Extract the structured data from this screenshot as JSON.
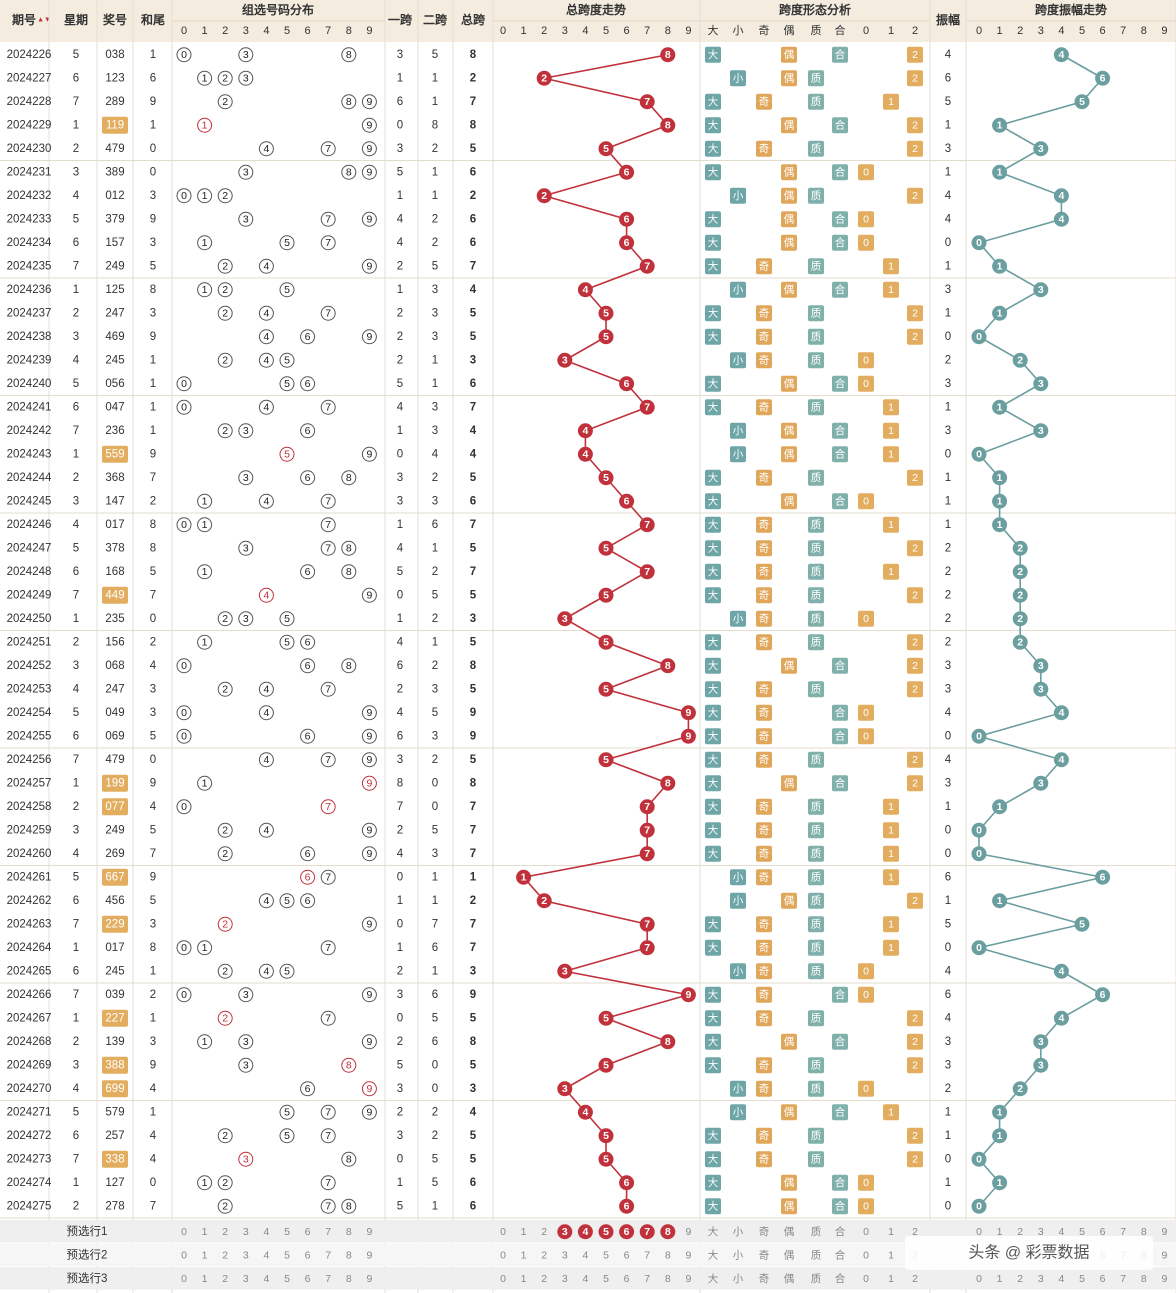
{
  "headers": {
    "issue": "期号",
    "sort_glyph": "▲▼",
    "weekday": "星期",
    "number": "奖号",
    "sum_tail": "和尾",
    "group_dist": "组选号码分布",
    "span1": "一跨",
    "span2": "二跨",
    "total_span": "总跨",
    "span_trend": "总跨度走势",
    "span_shape": "跨度形态分析",
    "amplitude": "振幅",
    "amp_trend": "跨度振幅走势",
    "digits": [
      "0",
      "1",
      "2",
      "3",
      "4",
      "5",
      "6",
      "7",
      "8",
      "9"
    ],
    "shape_labels": [
      "大",
      "小",
      "奇",
      "偶",
      "质",
      "合",
      "0",
      "1",
      "2"
    ]
  },
  "rows": [
    {
      "issue": "2024226",
      "weekday": "5",
      "number": "038",
      "tail": "1",
      "span1": "3",
      "span2": "5",
      "span": "8",
      "amp": "4",
      "hl": false
    },
    {
      "issue": "2024227",
      "weekday": "6",
      "number": "123",
      "tail": "6",
      "span1": "1",
      "span2": "1",
      "span": "2",
      "amp": "6",
      "hl": false
    },
    {
      "issue": "2024228",
      "weekday": "7",
      "number": "289",
      "tail": "9",
      "span1": "6",
      "span2": "1",
      "span": "7",
      "amp": "5",
      "hl": false
    },
    {
      "issue": "2024229",
      "weekday": "1",
      "number": "119",
      "tail": "1",
      "span1": "0",
      "span2": "8",
      "span": "8",
      "amp": "1",
      "hl": true
    },
    {
      "issue": "2024230",
      "weekday": "2",
      "number": "479",
      "tail": "0",
      "span1": "3",
      "span2": "2",
      "span": "5",
      "amp": "3",
      "hl": false
    },
    {
      "issue": "2024231",
      "weekday": "3",
      "number": "389",
      "tail": "0",
      "span1": "5",
      "span2": "1",
      "span": "6",
      "amp": "1",
      "hl": false
    },
    {
      "issue": "2024232",
      "weekday": "4",
      "number": "012",
      "tail": "3",
      "span1": "1",
      "span2": "1",
      "span": "2",
      "amp": "4",
      "hl": false
    },
    {
      "issue": "2024233",
      "weekday": "5",
      "number": "379",
      "tail": "9",
      "span1": "4",
      "span2": "2",
      "span": "6",
      "amp": "4",
      "hl": false
    },
    {
      "issue": "2024234",
      "weekday": "6",
      "number": "157",
      "tail": "3",
      "span1": "4",
      "span2": "2",
      "span": "6",
      "amp": "0",
      "hl": false
    },
    {
      "issue": "2024235",
      "weekday": "7",
      "number": "249",
      "tail": "5",
      "span1": "2",
      "span2": "5",
      "span": "7",
      "amp": "1",
      "hl": false
    },
    {
      "issue": "2024236",
      "weekday": "1",
      "number": "125",
      "tail": "8",
      "span1": "1",
      "span2": "3",
      "span": "4",
      "amp": "3",
      "hl": false
    },
    {
      "issue": "2024237",
      "weekday": "2",
      "number": "247",
      "tail": "3",
      "span1": "2",
      "span2": "3",
      "span": "5",
      "amp": "1",
      "hl": false
    },
    {
      "issue": "2024238",
      "weekday": "3",
      "number": "469",
      "tail": "9",
      "span1": "2",
      "span2": "3",
      "span": "5",
      "amp": "0",
      "hl": false
    },
    {
      "issue": "2024239",
      "weekday": "4",
      "number": "245",
      "tail": "1",
      "span1": "2",
      "span2": "1",
      "span": "3",
      "amp": "2",
      "hl": false
    },
    {
      "issue": "2024240",
      "weekday": "5",
      "number": "056",
      "tail": "1",
      "span1": "5",
      "span2": "1",
      "span": "6",
      "amp": "3",
      "hl": false
    },
    {
      "issue": "2024241",
      "weekday": "6",
      "number": "047",
      "tail": "1",
      "span1": "4",
      "span2": "3",
      "span": "7",
      "amp": "1",
      "hl": false
    },
    {
      "issue": "2024242",
      "weekday": "7",
      "number": "236",
      "tail": "1",
      "span1": "1",
      "span2": "3",
      "span": "4",
      "amp": "3",
      "hl": false
    },
    {
      "issue": "2024243",
      "weekday": "1",
      "number": "559",
      "tail": "9",
      "span1": "0",
      "span2": "4",
      "span": "4",
      "amp": "0",
      "hl": true
    },
    {
      "issue": "2024244",
      "weekday": "2",
      "number": "368",
      "tail": "7",
      "span1": "3",
      "span2": "2",
      "span": "5",
      "amp": "1",
      "hl": false
    },
    {
      "issue": "2024245",
      "weekday": "3",
      "number": "147",
      "tail": "2",
      "span1": "3",
      "span2": "3",
      "span": "6",
      "amp": "1",
      "hl": false
    },
    {
      "issue": "2024246",
      "weekday": "4",
      "number": "017",
      "tail": "8",
      "span1": "1",
      "span2": "6",
      "span": "7",
      "amp": "1",
      "hl": false
    },
    {
      "issue": "2024247",
      "weekday": "5",
      "number": "378",
      "tail": "8",
      "span1": "4",
      "span2": "1",
      "span": "5",
      "amp": "2",
      "hl": false
    },
    {
      "issue": "2024248",
      "weekday": "6",
      "number": "168",
      "tail": "5",
      "span1": "5",
      "span2": "2",
      "span": "7",
      "amp": "2",
      "hl": false
    },
    {
      "issue": "2024249",
      "weekday": "7",
      "number": "449",
      "tail": "7",
      "span1": "0",
      "span2": "5",
      "span": "5",
      "amp": "2",
      "hl": true
    },
    {
      "issue": "2024250",
      "weekday": "1",
      "number": "235",
      "tail": "0",
      "span1": "1",
      "span2": "2",
      "span": "3",
      "amp": "2",
      "hl": false
    },
    {
      "issue": "2024251",
      "weekday": "2",
      "number": "156",
      "tail": "2",
      "span1": "4",
      "span2": "1",
      "span": "5",
      "amp": "2",
      "hl": false
    },
    {
      "issue": "2024252",
      "weekday": "3",
      "number": "068",
      "tail": "4",
      "span1": "6",
      "span2": "2",
      "span": "8",
      "amp": "3",
      "hl": false
    },
    {
      "issue": "2024253",
      "weekday": "4",
      "number": "247",
      "tail": "3",
      "span1": "2",
      "span2": "3",
      "span": "5",
      "amp": "3",
      "hl": false
    },
    {
      "issue": "2024254",
      "weekday": "5",
      "number": "049",
      "tail": "3",
      "span1": "4",
      "span2": "5",
      "span": "9",
      "amp": "4",
      "hl": false
    },
    {
      "issue": "2024255",
      "weekday": "6",
      "number": "069",
      "tail": "5",
      "span1": "6",
      "span2": "3",
      "span": "9",
      "amp": "0",
      "hl": false
    },
    {
      "issue": "2024256",
      "weekday": "7",
      "number": "479",
      "tail": "0",
      "span1": "3",
      "span2": "2",
      "span": "5",
      "amp": "4",
      "hl": false
    },
    {
      "issue": "2024257",
      "weekday": "1",
      "number": "199",
      "tail": "9",
      "span1": "8",
      "span2": "0",
      "span": "8",
      "amp": "3",
      "hl": true
    },
    {
      "issue": "2024258",
      "weekday": "2",
      "number": "077",
      "tail": "4",
      "span1": "7",
      "span2": "0",
      "span": "7",
      "amp": "1",
      "hl": true
    },
    {
      "issue": "2024259",
      "weekday": "3",
      "number": "249",
      "tail": "5",
      "span1": "2",
      "span2": "5",
      "span": "7",
      "amp": "0",
      "hl": false
    },
    {
      "issue": "2024260",
      "weekday": "4",
      "number": "269",
      "tail": "7",
      "span1": "4",
      "span2": "3",
      "span": "7",
      "amp": "0",
      "hl": false
    },
    {
      "issue": "2024261",
      "weekday": "5",
      "number": "667",
      "tail": "9",
      "span1": "0",
      "span2": "1",
      "span": "1",
      "amp": "6",
      "hl": true
    },
    {
      "issue": "2024262",
      "weekday": "6",
      "number": "456",
      "tail": "5",
      "span1": "1",
      "span2": "1",
      "span": "2",
      "amp": "1",
      "hl": false
    },
    {
      "issue": "2024263",
      "weekday": "7",
      "number": "229",
      "tail": "3",
      "span1": "0",
      "span2": "7",
      "span": "7",
      "amp": "5",
      "hl": true
    },
    {
      "issue": "2024264",
      "weekday": "1",
      "number": "017",
      "tail": "8",
      "span1": "1",
      "span2": "6",
      "span": "7",
      "amp": "0",
      "hl": false
    },
    {
      "issue": "2024265",
      "weekday": "6",
      "number": "245",
      "tail": "1",
      "span1": "2",
      "span2": "1",
      "span": "3",
      "amp": "4",
      "hl": false
    },
    {
      "issue": "2024266",
      "weekday": "7",
      "number": "039",
      "tail": "2",
      "span1": "3",
      "span2": "6",
      "span": "9",
      "amp": "6",
      "hl": false
    },
    {
      "issue": "2024267",
      "weekday": "1",
      "number": "227",
      "tail": "1",
      "span1": "0",
      "span2": "5",
      "span": "5",
      "amp": "4",
      "hl": true
    },
    {
      "issue": "2024268",
      "weekday": "2",
      "number": "139",
      "tail": "3",
      "span1": "2",
      "span2": "6",
      "span": "8",
      "amp": "3",
      "hl": false
    },
    {
      "issue": "2024269",
      "weekday": "3",
      "number": "388",
      "tail": "9",
      "span1": "5",
      "span2": "0",
      "span": "5",
      "amp": "3",
      "hl": true
    },
    {
      "issue": "2024270",
      "weekday": "4",
      "number": "699",
      "tail": "4",
      "span1": "3",
      "span2": "0",
      "span": "3",
      "amp": "2",
      "hl": true
    },
    {
      "issue": "2024271",
      "weekday": "5",
      "number": "579",
      "tail": "1",
      "span1": "2",
      "span2": "2",
      "span": "4",
      "amp": "1",
      "hl": false
    },
    {
      "issue": "2024272",
      "weekday": "6",
      "number": "257",
      "tail": "4",
      "span1": "3",
      "span2": "2",
      "span": "5",
      "amp": "1",
      "hl": false
    },
    {
      "issue": "2024273",
      "weekday": "7",
      "number": "338",
      "tail": "4",
      "span1": "0",
      "span2": "5",
      "span": "5",
      "amp": "0",
      "hl": true
    },
    {
      "issue": "2024274",
      "weekday": "1",
      "number": "127",
      "tail": "0",
      "span1": "1",
      "span2": "5",
      "span": "6",
      "amp": "1",
      "hl": false
    },
    {
      "issue": "2024275",
      "weekday": "2",
      "number": "278",
      "tail": "7",
      "span1": "5",
      "span2": "1",
      "span": "6",
      "amp": "0",
      "hl": false
    }
  ],
  "preselect": [
    {
      "label": "预选行1",
      "span_marked": [
        "3",
        "4",
        "5",
        "6",
        "7",
        "8"
      ]
    },
    {
      "label": "预选行2",
      "span_marked": []
    },
    {
      "label": "预选行3",
      "span_marked": []
    }
  ],
  "watermark": "头条 @ 彩票数据",
  "colors": {
    "header_bg": "#f3ecdf",
    "red": "#c0313b",
    "teal": "#6b9e9f",
    "gold": "#e2ad5f",
    "big_small": "#6ea5a7",
    "odd_even": "#e0a75a",
    "prime_comp": "#7fb0aa"
  }
}
